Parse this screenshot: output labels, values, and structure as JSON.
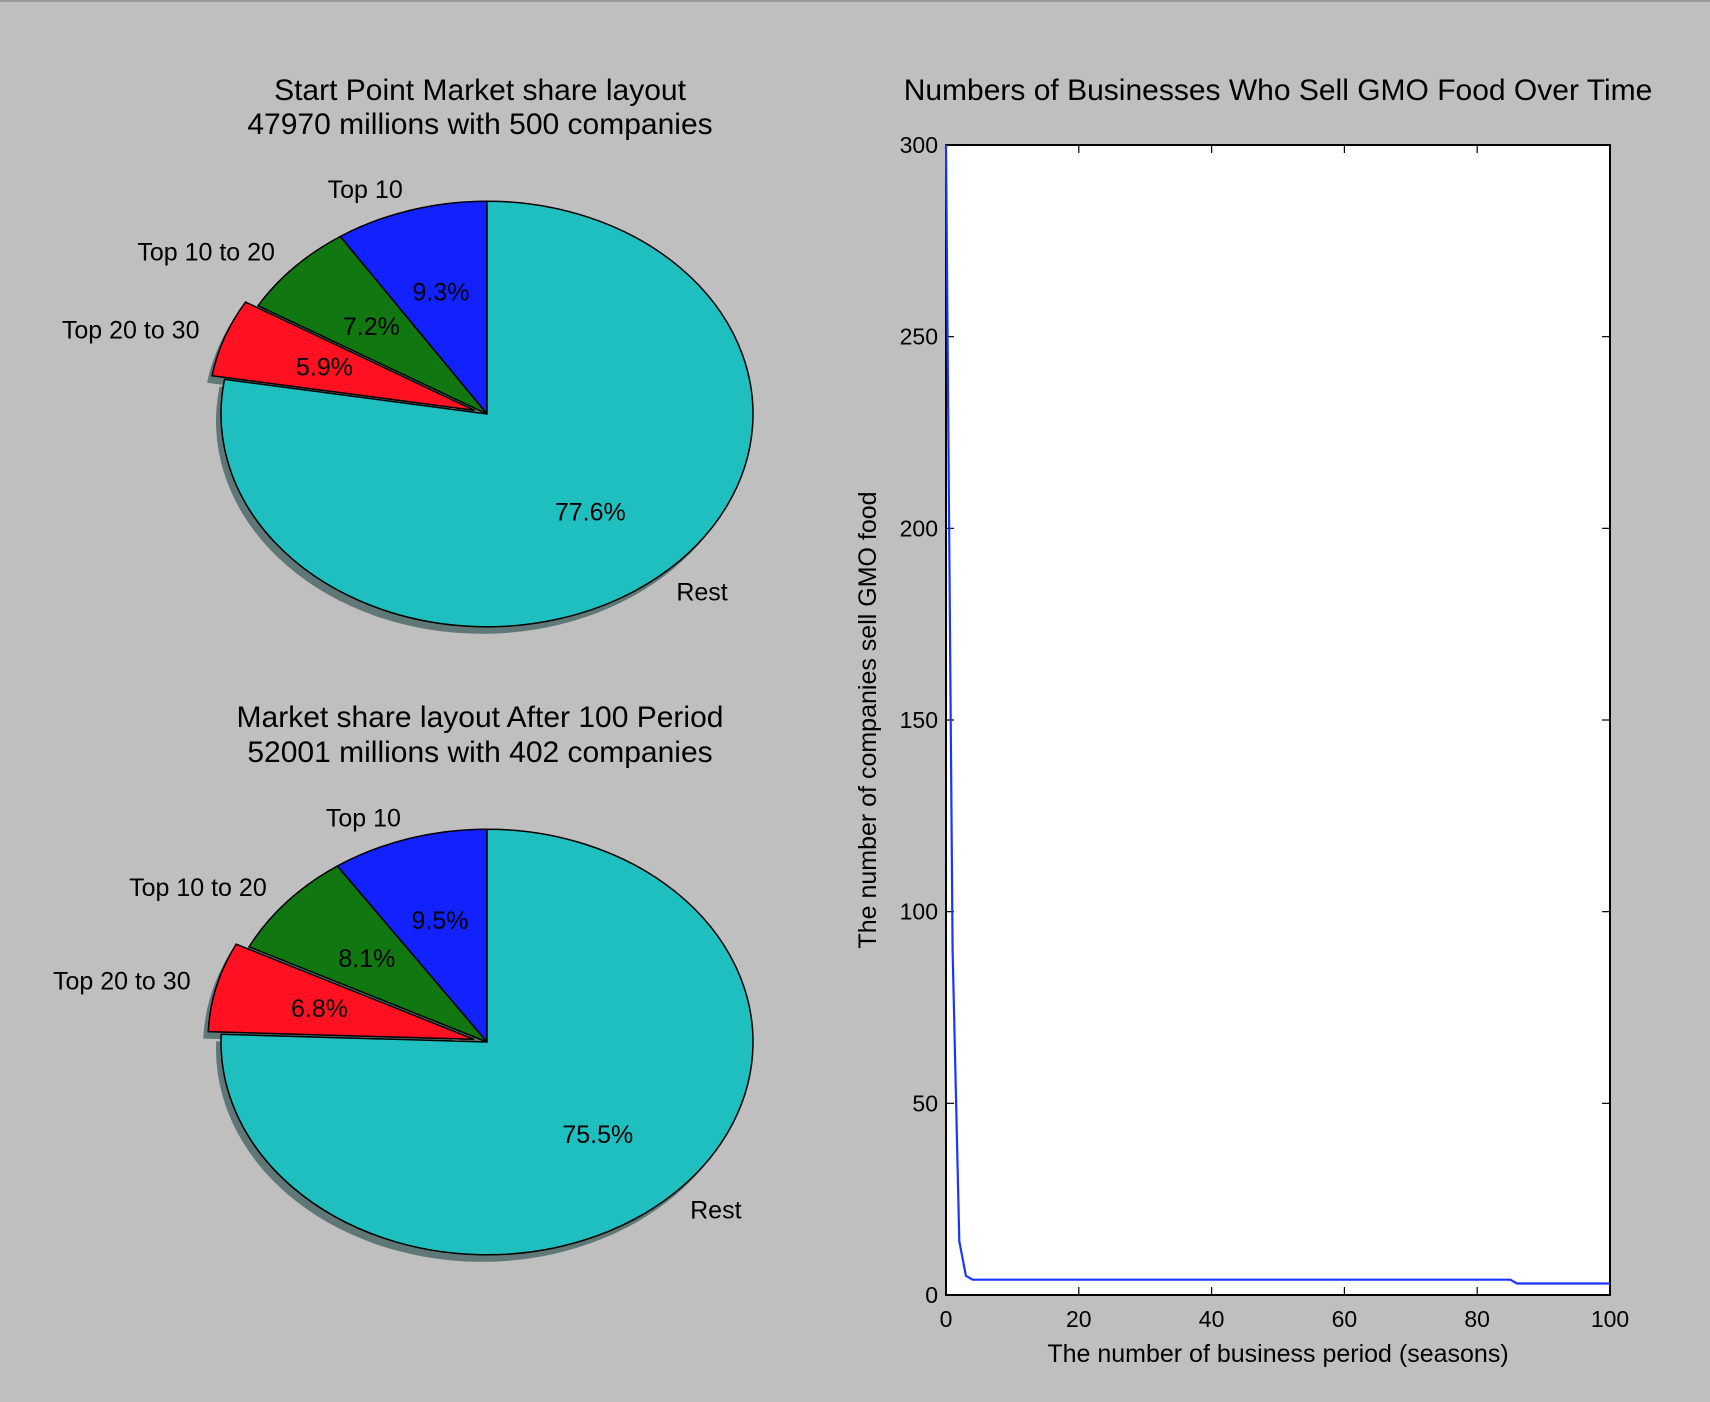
{
  "chart_data": [
    {
      "type": "pie",
      "title": "Start Point Market share layout\n47970 millions with 500 companies",
      "categories": [
        "Top 10",
        "Top 10 to 20",
        "Top 20 to 30",
        "Rest"
      ],
      "values": [
        9.3,
        7.2,
        5.9,
        77.6
      ],
      "value_labels": [
        "9.3%",
        "7.2%",
        "5.9%",
        "77.6%"
      ],
      "colors": [
        "#1122ff",
        "#117711",
        "#ff1122",
        "#20bfbf"
      ],
      "explode": [
        0,
        0,
        0.05,
        0
      ],
      "start_angle_deg": 90,
      "shadow": true
    },
    {
      "type": "pie",
      "title": "Market share layout After 100 Period\n52001 millions with 402 companies",
      "categories": [
        "Top 10",
        "Top 10 to 20",
        "Top 20 to 30",
        "Rest"
      ],
      "values": [
        9.5,
        8.1,
        6.8,
        75.5
      ],
      "value_labels": [
        "9.5%",
        "8.1%",
        "6.8%",
        "75.5%"
      ],
      "colors": [
        "#1122ff",
        "#117711",
        "#ff1122",
        "#20bfbf"
      ],
      "explode": [
        0,
        0,
        0.05,
        0
      ],
      "start_angle_deg": 90,
      "shadow": true
    },
    {
      "type": "line",
      "title": "Numbers of Businesses Who Sell GMO Food Over Time",
      "xlabel": "The number of business period (seasons)",
      "ylabel": "The number of companies sell GMO food",
      "xlim": [
        0,
        100
      ],
      "ylim": [
        0,
        300
      ],
      "xticks": [
        0,
        20,
        40,
        60,
        80,
        100
      ],
      "yticks": [
        0,
        50,
        100,
        150,
        200,
        250,
        300
      ],
      "color": "#1a35ff",
      "series": [
        {
          "x": [
            0,
            1,
            2,
            3,
            4,
            5,
            10,
            20,
            40,
            60,
            80,
            85,
            86,
            90,
            100
          ],
          "y": [
            300,
            90,
            14,
            5,
            4,
            4,
            4,
            4,
            4,
            4,
            4,
            4,
            3,
            3,
            3
          ]
        }
      ]
    }
  ]
}
